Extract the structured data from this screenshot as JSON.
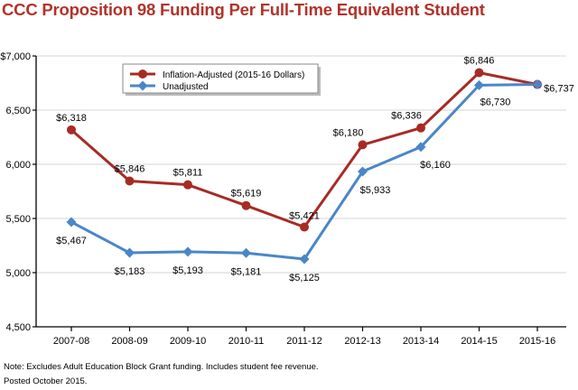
{
  "chart_data": {
    "type": "line",
    "title": "CCC Proposition 98 Funding Per Full-Time Equivalent Student",
    "categories": [
      "2007-08",
      "2008-09",
      "2009-10",
      "2010-11",
      "2011-12",
      "2012-13",
      "2013-14",
      "2014-15",
      "2015-16"
    ],
    "series": [
      {
        "name": "Inflation-Adjusted (2015-16 Dollars)",
        "color": "#a72b25",
        "marker": "circle",
        "values": [
          6318,
          5846,
          5811,
          5619,
          5421,
          6180,
          6336,
          6846,
          6737
        ],
        "labels": [
          "$6,318",
          "$5,846",
          "$5,811",
          "$5,619",
          "$5,421",
          "$6,180",
          "$6,336",
          "$6,846",
          ""
        ]
      },
      {
        "name": "Unadjusted",
        "color": "#4a86c8",
        "marker": "diamond",
        "values": [
          5467,
          5183,
          5193,
          5181,
          5125,
          5933,
          6160,
          6730,
          6737
        ],
        "labels": [
          "$5,467",
          "$5,183",
          "$5,193",
          "$5,181",
          "$5,125",
          "$5,933",
          "$6,160",
          "$6,730",
          "$6,737"
        ]
      }
    ],
    "ylim": [
      4500,
      7000
    ],
    "yticks": [
      4500,
      5000,
      5500,
      6000,
      6500,
      7000
    ],
    "ytick_labels": [
      "4,500",
      "5,000",
      "5,500",
      "6,000",
      "6,500",
      "$7,000"
    ],
    "xlabel": "",
    "ylabel": "",
    "grid": true,
    "legend": "top-left"
  },
  "notes": [
    "Note: Excludes Adult Education Block Grant funding. Includes student fee revenue.",
    "Posted October 2015."
  ]
}
